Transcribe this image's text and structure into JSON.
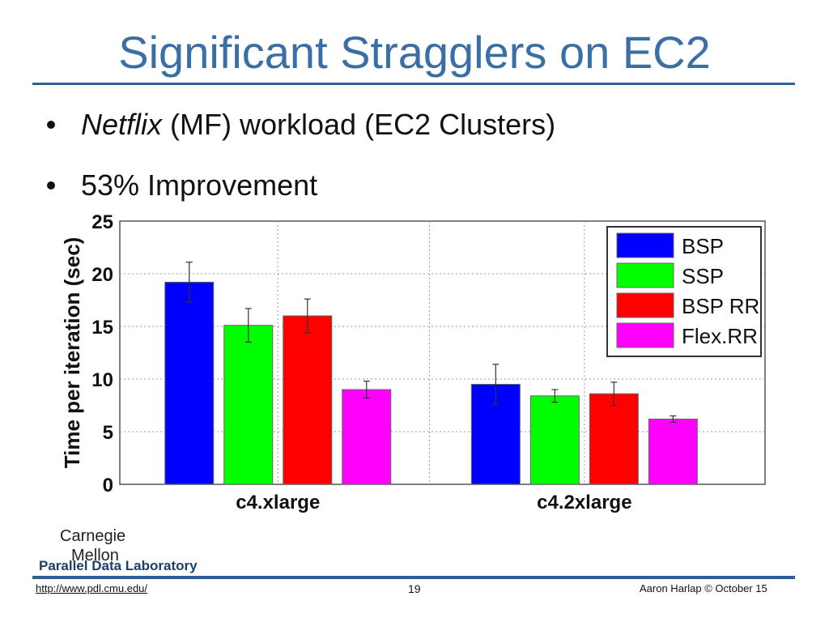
{
  "slide": {
    "title": "Significant Stragglers on EC2",
    "bullets": [
      {
        "em": "Netflix",
        "rest": " (MF) workload (EC2 Clusters)"
      },
      {
        "em": "",
        "rest": "53% Improvement"
      }
    ]
  },
  "footer": {
    "brand_line1": "Carnegie",
    "brand_line2": "Mellon",
    "lab": "Parallel Data Laboratory",
    "url": "http://www.pdl.cmu.edu/",
    "page": "19",
    "copyright": "Aaron Harlap © October 15"
  },
  "chart_data": {
    "type": "bar",
    "ylabel": "Time per iteration (sec)",
    "xlabel": "",
    "categories": [
      "c4.xlarge",
      "c4.2xlarge"
    ],
    "ylim": [
      0,
      25
    ],
    "yticks": [
      0,
      5,
      10,
      15,
      20,
      25
    ],
    "grid": true,
    "legend_position": "top-right",
    "series": [
      {
        "name": "BSP",
        "color": "#0000ff",
        "values": [
          19.2,
          9.5
        ],
        "err": [
          1.9,
          1.9
        ]
      },
      {
        "name": "SSP",
        "color": "#00ff00",
        "values": [
          15.1,
          8.4
        ],
        "err": [
          1.6,
          0.6
        ]
      },
      {
        "name": "BSP RR",
        "color": "#ff0000",
        "values": [
          16.0,
          8.6
        ],
        "err": [
          1.6,
          1.1
        ]
      },
      {
        "name": "Flex.RR",
        "color": "#ff00ff",
        "values": [
          9.0,
          6.2
        ],
        "err": [
          0.8,
          0.3
        ]
      }
    ]
  }
}
